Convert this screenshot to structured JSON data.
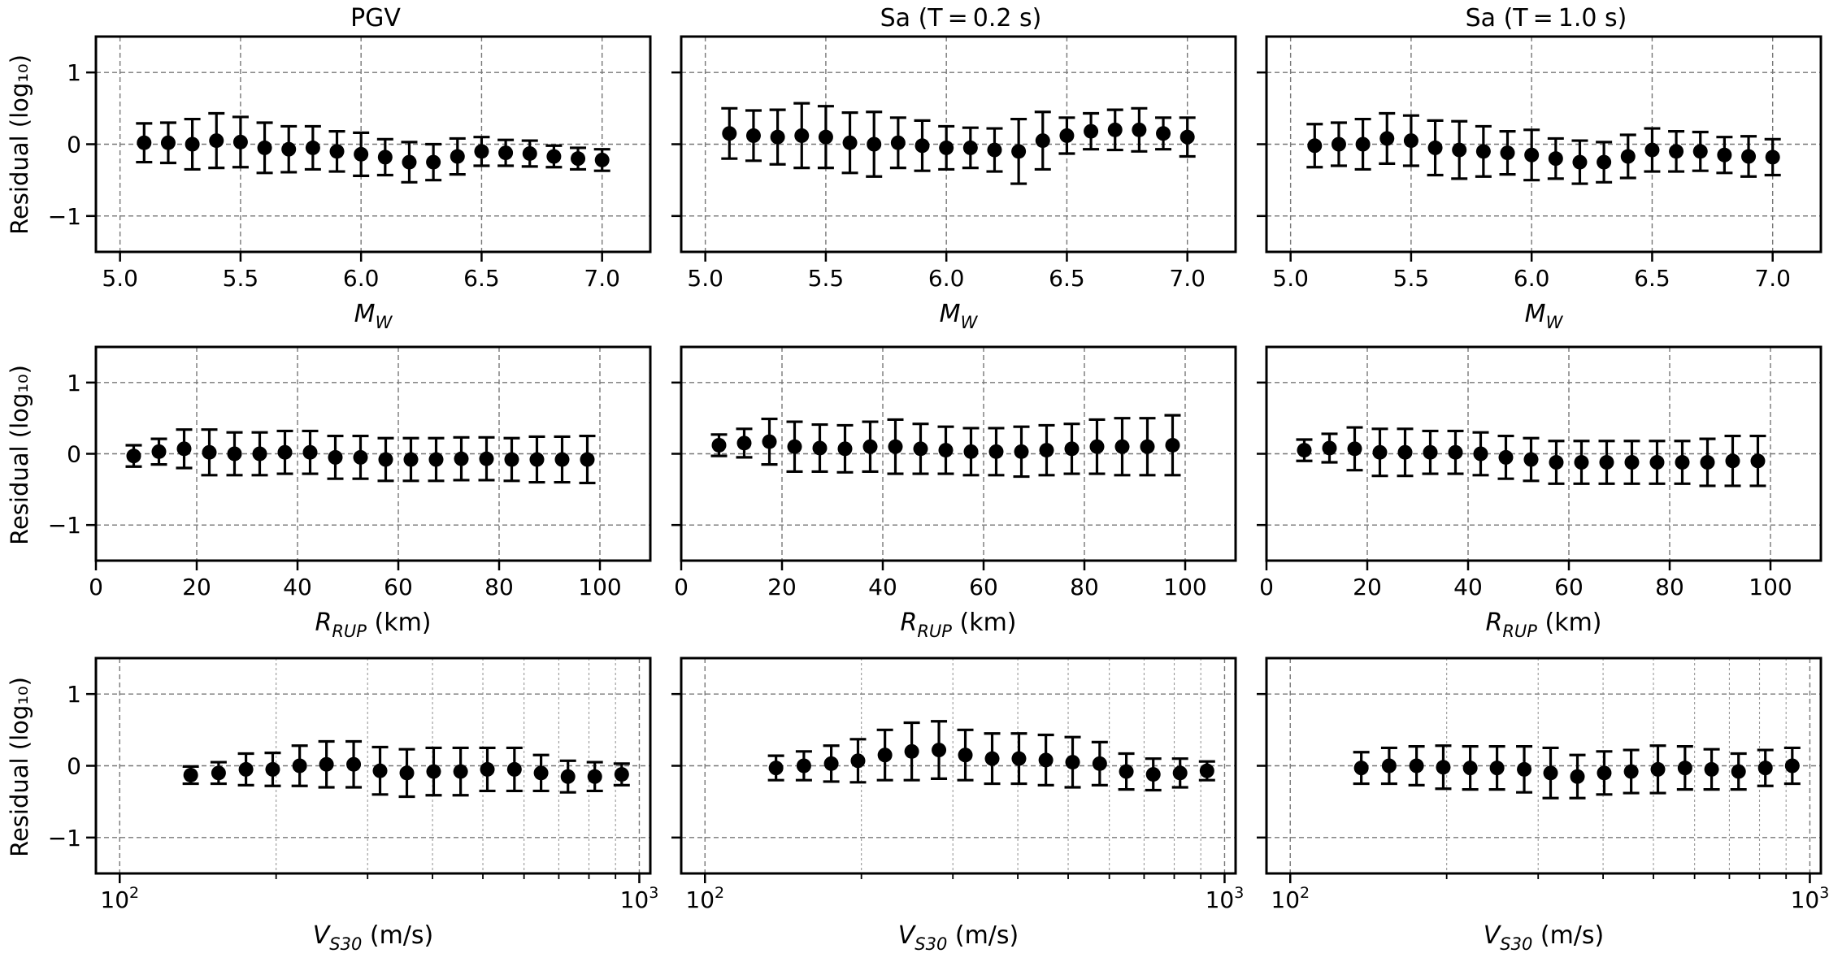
{
  "figure": {
    "column_titles": [
      "PGV",
      "Sa (T = 0.2 s)",
      "Sa (T = 1.0 s)"
    ],
    "ylabel": "Residual (log₁₀)"
  },
  "chart_data": [
    {
      "type": "scatter",
      "row": 0,
      "col": 0,
      "title": "PGV",
      "xlabel": "M_W",
      "ylabel": "Residual (log10)",
      "xscale": "linear",
      "xlim": [
        4.9,
        7.2
      ],
      "ylim": [
        -1.5,
        1.5
      ],
      "grid": true,
      "xticks": [
        5.0,
        5.5,
        6.0,
        6.5,
        7.0
      ],
      "xtick_labels": [
        "5.0",
        "5.5",
        "6.0",
        "6.5",
        "7.0"
      ],
      "yticks": [
        -1,
        0,
        1
      ],
      "ytick_labels": [
        "−1",
        "0",
        "1"
      ],
      "x": [
        5.1,
        5.2,
        5.3,
        5.4,
        5.5,
        5.6,
        5.7,
        5.8,
        5.9,
        6.0,
        6.1,
        6.2,
        6.3,
        6.4,
        6.5,
        6.6,
        6.7,
        6.8,
        6.9,
        7.0
      ],
      "y": [
        0.02,
        0.02,
        0.0,
        0.05,
        0.03,
        -0.05,
        -0.07,
        -0.05,
        -0.1,
        -0.14,
        -0.18,
        -0.25,
        -0.25,
        -0.17,
        -0.1,
        -0.12,
        -0.13,
        -0.17,
        -0.2,
        -0.22
      ],
      "err": [
        0.27,
        0.28,
        0.35,
        0.38,
        0.35,
        0.35,
        0.32,
        0.3,
        0.28,
        0.3,
        0.25,
        0.28,
        0.25,
        0.25,
        0.2,
        0.18,
        0.18,
        0.15,
        0.15,
        0.15
      ]
    },
    {
      "type": "scatter",
      "row": 0,
      "col": 1,
      "title": "Sa (T = 0.2 s)",
      "xlabel": "M_W",
      "ylabel": "Residual (log10)",
      "xscale": "linear",
      "xlim": [
        4.9,
        7.2
      ],
      "ylim": [
        -1.5,
        1.5
      ],
      "grid": true,
      "xticks": [
        5.0,
        5.5,
        6.0,
        6.5,
        7.0
      ],
      "xtick_labels": [
        "5.0",
        "5.5",
        "6.0",
        "6.5",
        "7.0"
      ],
      "yticks": [
        -1,
        0,
        1
      ],
      "ytick_labels": [
        "−1",
        "0",
        "1"
      ],
      "x": [
        5.1,
        5.2,
        5.3,
        5.4,
        5.5,
        5.6,
        5.7,
        5.8,
        5.9,
        6.0,
        6.1,
        6.2,
        6.3,
        6.4,
        6.5,
        6.6,
        6.7,
        6.8,
        6.9,
        7.0
      ],
      "y": [
        0.15,
        0.12,
        0.1,
        0.12,
        0.1,
        0.02,
        0.0,
        0.02,
        -0.02,
        -0.05,
        -0.05,
        -0.08,
        -0.1,
        0.05,
        0.12,
        0.18,
        0.2,
        0.2,
        0.15,
        0.1
      ],
      "err": [
        0.35,
        0.35,
        0.38,
        0.45,
        0.43,
        0.42,
        0.45,
        0.35,
        0.35,
        0.3,
        0.28,
        0.3,
        0.45,
        0.4,
        0.25,
        0.25,
        0.28,
        0.3,
        0.22,
        0.27
      ]
    },
    {
      "type": "scatter",
      "row": 0,
      "col": 2,
      "title": "Sa (T = 1.0 s)",
      "xlabel": "M_W",
      "ylabel": "Residual (log10)",
      "xscale": "linear",
      "xlim": [
        4.9,
        7.2
      ],
      "ylim": [
        -1.5,
        1.5
      ],
      "grid": true,
      "xticks": [
        5.0,
        5.5,
        6.0,
        6.5,
        7.0
      ],
      "xtick_labels": [
        "5.0",
        "5.5",
        "6.0",
        "6.5",
        "7.0"
      ],
      "yticks": [
        -1,
        0,
        1
      ],
      "ytick_labels": [
        "−1",
        "0",
        "1"
      ],
      "x": [
        5.1,
        5.2,
        5.3,
        5.4,
        5.5,
        5.6,
        5.7,
        5.8,
        5.9,
        6.0,
        6.1,
        6.2,
        6.3,
        6.4,
        6.5,
        6.6,
        6.7,
        6.8,
        6.9,
        7.0
      ],
      "y": [
        -0.02,
        0.0,
        0.0,
        0.08,
        0.05,
        -0.05,
        -0.08,
        -0.1,
        -0.12,
        -0.15,
        -0.2,
        -0.25,
        -0.25,
        -0.17,
        -0.08,
        -0.1,
        -0.1,
        -0.15,
        -0.17,
        -0.18
      ],
      "err": [
        0.3,
        0.3,
        0.35,
        0.35,
        0.35,
        0.38,
        0.4,
        0.35,
        0.3,
        0.35,
        0.28,
        0.3,
        0.28,
        0.3,
        0.3,
        0.28,
        0.27,
        0.25,
        0.28,
        0.25
      ]
    },
    {
      "type": "scatter",
      "row": 1,
      "col": 0,
      "title": "",
      "xlabel": "R_RUP (km)",
      "ylabel": "Residual (log10)",
      "xscale": "linear",
      "xlim": [
        0,
        110
      ],
      "ylim": [
        -1.5,
        1.5
      ],
      "grid": true,
      "xticks": [
        0,
        20,
        40,
        60,
        80,
        100
      ],
      "xtick_labels": [
        "0",
        "20",
        "40",
        "60",
        "80",
        "100"
      ],
      "yticks": [
        -1,
        0,
        1
      ],
      "ytick_labels": [
        "−1",
        "0",
        "1"
      ],
      "x": [
        7.5,
        12.5,
        17.5,
        22.5,
        27.5,
        32.5,
        37.5,
        42.5,
        47.5,
        52.5,
        57.5,
        62.5,
        67.5,
        72.5,
        77.5,
        82.5,
        87.5,
        92.5,
        97.5
      ],
      "y": [
        -0.03,
        0.03,
        0.07,
        0.02,
        0.0,
        0.0,
        0.02,
        0.02,
        -0.05,
        -0.05,
        -0.08,
        -0.08,
        -0.08,
        -0.07,
        -0.07,
        -0.08,
        -0.08,
        -0.08,
        -0.08
      ],
      "err": [
        0.15,
        0.18,
        0.27,
        0.32,
        0.3,
        0.3,
        0.3,
        0.3,
        0.3,
        0.3,
        0.3,
        0.3,
        0.3,
        0.3,
        0.3,
        0.3,
        0.32,
        0.32,
        0.33
      ]
    },
    {
      "type": "scatter",
      "row": 1,
      "col": 1,
      "title": "",
      "xlabel": "R_RUP (km)",
      "ylabel": "Residual (log10)",
      "xscale": "linear",
      "xlim": [
        0,
        110
      ],
      "ylim": [
        -1.5,
        1.5
      ],
      "grid": true,
      "xticks": [
        0,
        20,
        40,
        60,
        80,
        100
      ],
      "xtick_labels": [
        "0",
        "20",
        "40",
        "60",
        "80",
        "100"
      ],
      "yticks": [
        -1,
        0,
        1
      ],
      "ytick_labels": [
        "−1",
        "0",
        "1"
      ],
      "x": [
        7.5,
        12.5,
        17.5,
        22.5,
        27.5,
        32.5,
        37.5,
        42.5,
        47.5,
        52.5,
        57.5,
        62.5,
        67.5,
        72.5,
        77.5,
        82.5,
        87.5,
        92.5,
        97.5
      ],
      "y": [
        0.12,
        0.15,
        0.17,
        0.1,
        0.08,
        0.07,
        0.1,
        0.1,
        0.07,
        0.05,
        0.03,
        0.03,
        0.03,
        0.05,
        0.07,
        0.1,
        0.1,
        0.1,
        0.12
      ],
      "err": [
        0.15,
        0.2,
        0.32,
        0.35,
        0.33,
        0.33,
        0.35,
        0.38,
        0.35,
        0.33,
        0.33,
        0.33,
        0.35,
        0.35,
        0.35,
        0.38,
        0.4,
        0.4,
        0.42
      ]
    },
    {
      "type": "scatter",
      "row": 1,
      "col": 2,
      "title": "",
      "xlabel": "R_RUP (km)",
      "ylabel": "Residual (log10)",
      "xscale": "linear",
      "xlim": [
        0,
        110
      ],
      "ylim": [
        -1.5,
        1.5
      ],
      "grid": true,
      "xticks": [
        0,
        20,
        40,
        60,
        80,
        100
      ],
      "xtick_labels": [
        "0",
        "20",
        "40",
        "60",
        "80",
        "100"
      ],
      "yticks": [
        -1,
        0,
        1
      ],
      "ytick_labels": [
        "−1",
        "0",
        "1"
      ],
      "x": [
        7.5,
        12.5,
        17.5,
        22.5,
        27.5,
        32.5,
        37.5,
        42.5,
        47.5,
        52.5,
        57.5,
        62.5,
        67.5,
        72.5,
        77.5,
        82.5,
        87.5,
        92.5,
        97.5
      ],
      "y": [
        0.05,
        0.08,
        0.07,
        0.02,
        0.02,
        0.02,
        0.02,
        0.0,
        -0.05,
        -0.08,
        -0.12,
        -0.12,
        -0.12,
        -0.12,
        -0.12,
        -0.12,
        -0.12,
        -0.1,
        -0.1
      ],
      "err": [
        0.15,
        0.2,
        0.3,
        0.33,
        0.33,
        0.3,
        0.3,
        0.3,
        0.3,
        0.3,
        0.3,
        0.3,
        0.3,
        0.3,
        0.3,
        0.3,
        0.33,
        0.35,
        0.35
      ]
    },
    {
      "type": "scatter",
      "row": 2,
      "col": 0,
      "title": "",
      "xlabel": "V_S30 (m/s)",
      "ylabel": "Residual (log10)",
      "xscale": "log",
      "xlim": [
        90,
        1050
      ],
      "ylim": [
        -1.5,
        1.5
      ],
      "grid": true,
      "xticks": [
        100,
        1000
      ],
      "xtick_labels": [
        "10",
        "10"
      ],
      "xtick_exponents": [
        "2",
        "3"
      ],
      "yticks": [
        -1,
        0,
        1
      ],
      "ytick_labels": [
        "−1",
        "0",
        "1"
      ],
      "x": [
        137,
        155,
        175,
        197,
        222,
        250,
        282,
        317,
        357,
        402,
        453,
        510,
        575,
        647,
        729,
        821,
        925
      ],
      "y": [
        -0.13,
        -0.1,
        -0.05,
        -0.05,
        0.0,
        0.02,
        0.02,
        -0.07,
        -0.1,
        -0.08,
        -0.08,
        -0.05,
        -0.05,
        -0.1,
        -0.15,
        -0.15,
        -0.12
      ],
      "err": [
        0.12,
        0.15,
        0.22,
        0.23,
        0.28,
        0.32,
        0.32,
        0.33,
        0.33,
        0.33,
        0.33,
        0.3,
        0.3,
        0.25,
        0.22,
        0.2,
        0.15
      ]
    },
    {
      "type": "scatter",
      "row": 2,
      "col": 1,
      "title": "",
      "xlabel": "V_S30 (m/s)",
      "ylabel": "Residual (log10)",
      "xscale": "log",
      "xlim": [
        90,
        1050
      ],
      "ylim": [
        -1.5,
        1.5
      ],
      "grid": true,
      "xticks": [
        100,
        1000
      ],
      "xtick_labels": [
        "10",
        "10"
      ],
      "xtick_exponents": [
        "2",
        "3"
      ],
      "yticks": [
        -1,
        0,
        1
      ],
      "ytick_labels": [
        "−1",
        "0",
        "1"
      ],
      "x": [
        137,
        155,
        175,
        197,
        222,
        250,
        282,
        317,
        357,
        402,
        453,
        510,
        575,
        647,
        729,
        821,
        925
      ],
      "y": [
        -0.03,
        0.0,
        0.03,
        0.07,
        0.15,
        0.2,
        0.22,
        0.15,
        0.1,
        0.1,
        0.08,
        0.05,
        0.03,
        -0.08,
        -0.12,
        -0.1,
        -0.07
      ],
      "err": [
        0.17,
        0.2,
        0.25,
        0.3,
        0.35,
        0.4,
        0.4,
        0.35,
        0.35,
        0.35,
        0.35,
        0.35,
        0.3,
        0.25,
        0.22,
        0.2,
        0.13
      ]
    },
    {
      "type": "scatter",
      "row": 2,
      "col": 2,
      "title": "",
      "xlabel": "V_S30 (m/s)",
      "ylabel": "Residual (log10)",
      "xscale": "log",
      "xlim": [
        90,
        1050
      ],
      "ylim": [
        -1.5,
        1.5
      ],
      "grid": true,
      "xticks": [
        100,
        1000
      ],
      "xtick_labels": [
        "10",
        "10"
      ],
      "xtick_exponents": [
        "2",
        "3"
      ],
      "yticks": [
        -1,
        0,
        1
      ],
      "ytick_labels": [
        "−1",
        "0",
        "1"
      ],
      "x": [
        137,
        155,
        175,
        197,
        222,
        250,
        282,
        317,
        357,
        402,
        453,
        510,
        575,
        647,
        729,
        821,
        925
      ],
      "y": [
        -0.03,
        0.0,
        0.0,
        -0.02,
        -0.03,
        -0.03,
        -0.05,
        -0.1,
        -0.15,
        -0.1,
        -0.08,
        -0.05,
        -0.03,
        -0.05,
        -0.08,
        -0.03,
        0.0
      ],
      "err": [
        0.22,
        0.25,
        0.27,
        0.3,
        0.3,
        0.3,
        0.32,
        0.35,
        0.3,
        0.3,
        0.3,
        0.33,
        0.3,
        0.28,
        0.25,
        0.25,
        0.25
      ]
    }
  ]
}
